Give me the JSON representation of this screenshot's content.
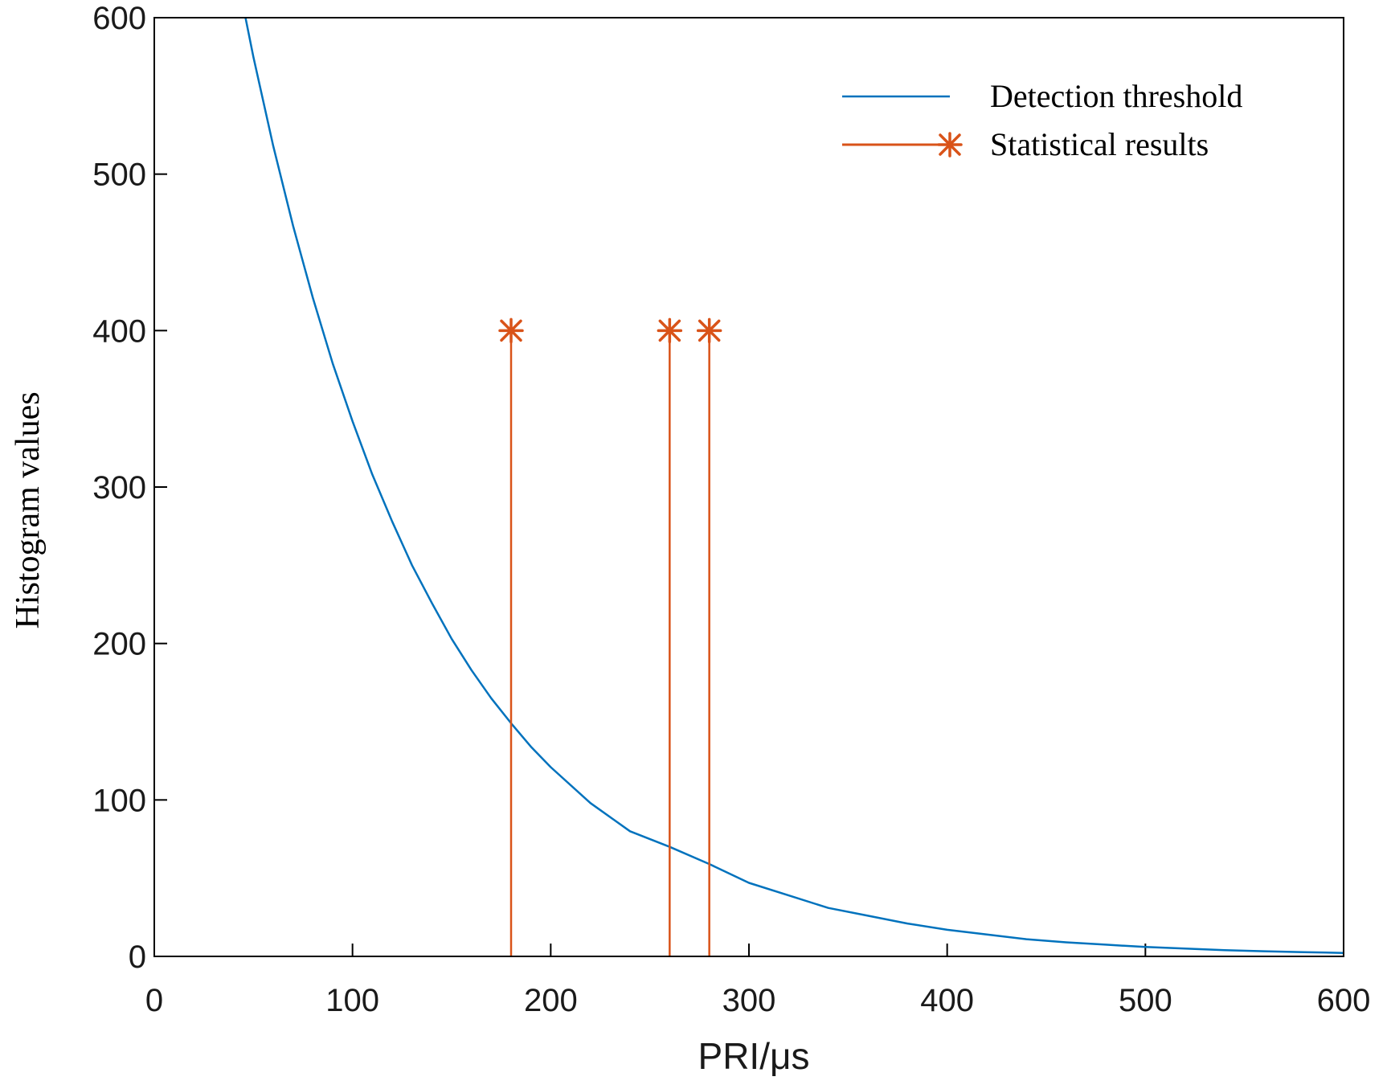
{
  "chart_data": {
    "type": "line",
    "title": "",
    "xlabel": "PRI/μs",
    "ylabel": "Histogram values",
    "xlim": [
      0,
      600
    ],
    "ylim": [
      0,
      600
    ],
    "xticks": [
      0,
      100,
      200,
      300,
      400,
      500,
      600
    ],
    "yticks": [
      0,
      100,
      200,
      300,
      400,
      500,
      600
    ],
    "grid": false,
    "legend_position": "top-right",
    "series": [
      {
        "name": "Detection threshold",
        "kind": "line",
        "color": "#0072BD",
        "x": [
          46,
          50,
          60,
          70,
          80,
          90,
          100,
          110,
          120,
          130,
          140,
          150,
          160,
          170,
          180,
          190,
          200,
          220,
          240,
          260,
          280,
          300,
          320,
          340,
          360,
          380,
          400,
          420,
          440,
          460,
          480,
          500,
          520,
          540,
          560,
          580,
          600
        ],
        "y": [
          600,
          575,
          518,
          467,
          421,
          379,
          342,
          308,
          278,
          250,
          226,
          203,
          183,
          165,
          149,
          134,
          121,
          98,
          80,
          70,
          59,
          47,
          39,
          31,
          26,
          21,
          17,
          14,
          11,
          9,
          7.5,
          6,
          5,
          4,
          3.3,
          2.7,
          2.2
        ]
      },
      {
        "name": "Statistical results",
        "kind": "stem",
        "marker": "asterisk",
        "color": "#D95319",
        "x": [
          180,
          260,
          280
        ],
        "y": [
          400,
          400,
          400
        ]
      }
    ]
  }
}
